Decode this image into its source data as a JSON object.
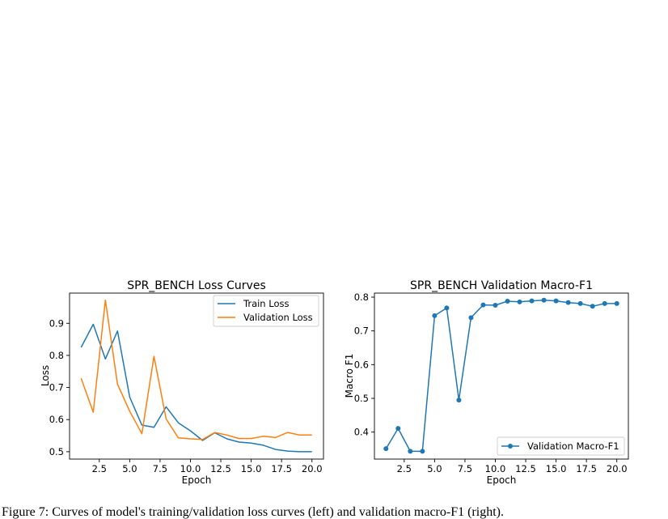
{
  "chart_data": [
    {
      "type": "line",
      "title": "SPR_BENCH Loss Curves",
      "xlabel": "Epoch",
      "ylabel": "Loss",
      "xlim": [
        0.05,
        20.95
      ],
      "ylim": [
        0.477,
        0.994
      ],
      "xticks": [
        2.5,
        5.0,
        7.5,
        10.0,
        12.5,
        15.0,
        17.5,
        20.0
      ],
      "xtick_labels": [
        "2.5",
        "5.0",
        "7.5",
        "10.0",
        "12.5",
        "15.0",
        "17.5",
        "20.0"
      ],
      "yticks": [
        0.5,
        0.6,
        0.7,
        0.8,
        0.9
      ],
      "ytick_labels": [
        "0.5",
        "0.6",
        "0.7",
        "0.8",
        "0.9"
      ],
      "legend_position": "top-right",
      "grid": false,
      "x": [
        1,
        2,
        3,
        4,
        5,
        6,
        7,
        8,
        9,
        10,
        11,
        12,
        13,
        14,
        15,
        16,
        17,
        18,
        19,
        20
      ],
      "series": [
        {
          "name": "Train Loss",
          "color": "#1f77b4",
          "values": [
            0.825,
            0.897,
            0.789,
            0.876,
            0.67,
            0.583,
            0.576,
            0.64,
            0.59,
            0.565,
            0.535,
            0.559,
            0.54,
            0.53,
            0.527,
            0.52,
            0.507,
            0.502,
            0.5,
            0.5
          ]
        },
        {
          "name": "Validation Loss",
          "color": "#ff7f0e",
          "values": [
            0.729,
            0.623,
            0.972,
            0.71,
            0.626,
            0.556,
            0.797,
            0.602,
            0.543,
            0.54,
            0.538,
            0.56,
            0.552,
            0.541,
            0.541,
            0.548,
            0.544,
            0.56,
            0.552,
            0.552
          ]
        }
      ]
    },
    {
      "type": "line",
      "title": "SPR_BENCH Validation Macro-F1",
      "xlabel": "Epoch",
      "ylabel": "Macro F1",
      "xlim": [
        0.05,
        20.95
      ],
      "ylim": [
        0.32,
        0.812
      ],
      "xticks": [
        2.5,
        5.0,
        7.5,
        10.0,
        12.5,
        15.0,
        17.5,
        20.0
      ],
      "xtick_labels": [
        "2.5",
        "5.0",
        "7.5",
        "10.0",
        "12.5",
        "15.0",
        "17.5",
        "20.0"
      ],
      "yticks": [
        0.4,
        0.5,
        0.6,
        0.7,
        0.8
      ],
      "ytick_labels": [
        "0.4",
        "0.5",
        "0.6",
        "0.7",
        "0.8"
      ],
      "legend_position": "lower-right",
      "grid": false,
      "markers": true,
      "x": [
        1,
        2,
        3,
        4,
        5,
        6,
        7,
        8,
        9,
        10,
        11,
        12,
        13,
        14,
        15,
        16,
        17,
        18,
        19,
        20
      ],
      "series": [
        {
          "name": "Validation Macro-F1",
          "color": "#1f77b4",
          "values": [
            0.351,
            0.411,
            0.343,
            0.343,
            0.745,
            0.768,
            0.495,
            0.739,
            0.777,
            0.776,
            0.788,
            0.786,
            0.789,
            0.791,
            0.789,
            0.784,
            0.781,
            0.773,
            0.781,
            0.781
          ]
        }
      ]
    }
  ],
  "caption": "Figure 7: Curves of model's training/validation loss curves (left) and validation macro-F1 (right)."
}
